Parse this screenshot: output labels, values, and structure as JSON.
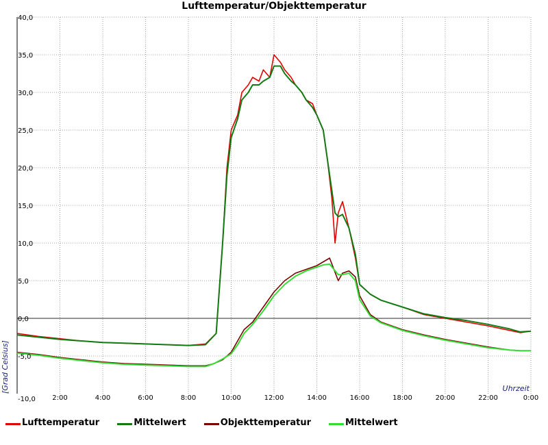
{
  "chart_data": {
    "type": "line",
    "title": "Lufttemperatur/Objekttemperatur",
    "xlabel": "Uhrzeit",
    "ylabel": "[Grad Celsius]",
    "xlim": [
      0,
      24
    ],
    "ylim": [
      -10,
      40
    ],
    "y_ticks": [
      "-10,0",
      "-5,0",
      "0,0",
      "5,0",
      "10,0",
      "15,0",
      "20,0",
      "25,0",
      "30,0",
      "35,0",
      "40,0"
    ],
    "x_ticks": [
      "2:00",
      "4:00",
      "6:00",
      "8:00",
      "10:00",
      "12:00",
      "14:00",
      "16:00",
      "18:00",
      "20:00",
      "22:00",
      "0:00"
    ],
    "grid": true,
    "zero_line": true,
    "legend_position": "bottom",
    "series": [
      {
        "name": "Lufttemperatur",
        "color": "#e00000",
        "x": [
          0,
          1,
          2,
          3,
          4,
          5,
          6,
          7,
          8,
          8.8,
          9.3,
          9.6,
          9.8,
          10,
          10.3,
          10.5,
          10.8,
          11,
          11.3,
          11.5,
          11.8,
          12,
          12.3,
          12.5,
          12.8,
          13,
          13.3,
          13.5,
          13.8,
          14,
          14.3,
          14.5,
          14.7,
          14.85,
          15,
          15.2,
          15.5,
          15.8,
          16,
          16.5,
          17,
          18,
          19,
          20,
          21,
          22,
          23,
          23.5,
          24
        ],
        "y": [
          -2,
          -2.4,
          -2.7,
          -3,
          -3.2,
          -3.3,
          -3.4,
          -3.5,
          -3.6,
          -3.4,
          -2,
          10,
          20,
          25,
          27,
          30,
          31,
          32,
          31.5,
          33,
          32,
          35,
          34,
          33,
          32,
          31,
          30,
          29,
          28.5,
          27,
          25,
          21,
          16,
          10,
          14,
          15.5,
          12,
          8,
          4.5,
          3.2,
          2.4,
          1.5,
          0.5,
          0,
          -0.5,
          -1,
          -1.6,
          -1.9,
          -1.7
        ]
      },
      {
        "name": "Mittelwert",
        "color": "#117a11",
        "x": [
          0,
          1,
          2,
          3,
          4,
          5,
          6,
          7,
          8,
          8.8,
          9.3,
          9.6,
          9.8,
          10,
          10.3,
          10.5,
          10.8,
          11,
          11.3,
          11.5,
          11.8,
          12,
          12.3,
          12.5,
          12.8,
          13,
          13.3,
          13.5,
          13.8,
          14,
          14.3,
          14.5,
          14.7,
          14.85,
          15,
          15.2,
          15.5,
          15.8,
          16,
          16.5,
          17,
          18,
          19,
          20,
          21,
          22,
          23,
          23.5,
          24
        ],
        "y": [
          -2.2,
          -2.5,
          -2.8,
          -3,
          -3.2,
          -3.3,
          -3.4,
          -3.5,
          -3.6,
          -3.5,
          -2,
          10,
          19,
          24,
          26.5,
          29,
          30,
          31,
          31,
          31.5,
          32,
          33.5,
          33.5,
          32.5,
          31.5,
          31,
          30,
          29,
          28,
          27,
          25,
          21,
          17,
          14,
          13.5,
          13.8,
          12,
          8.5,
          4.5,
          3.2,
          2.4,
          1.5,
          0.6,
          0.1,
          -0.3,
          -0.8,
          -1.4,
          -1.8,
          -1.7
        ]
      },
      {
        "name": "Objekttemperatur",
        "color": "#7a0000",
        "x": [
          0,
          1,
          2,
          3,
          4,
          5,
          6,
          7,
          8,
          8.8,
          9.2,
          9.6,
          10,
          10.3,
          10.6,
          11,
          11.5,
          12,
          12.5,
          13,
          13.5,
          14,
          14.3,
          14.6,
          14.8,
          15,
          15.2,
          15.5,
          15.8,
          16,
          16.5,
          17,
          18,
          19,
          20,
          21,
          22,
          23,
          23.5,
          24
        ],
        "y": [
          -4.5,
          -4.8,
          -5.2,
          -5.5,
          -5.8,
          -6,
          -6.1,
          -6.2,
          -6.3,
          -6.3,
          -6,
          -5.5,
          -4.5,
          -3,
          -1.5,
          -0.5,
          1.5,
          3.5,
          5,
          6,
          6.5,
          7,
          7.5,
          8,
          6.5,
          5,
          6,
          6.3,
          5.5,
          3,
          0.5,
          -0.5,
          -1.5,
          -2.2,
          -2.8,
          -3.3,
          -3.8,
          -4.2,
          -4.3,
          -4.3
        ]
      },
      {
        "name": "Mittelwert",
        "color": "#33dd33",
        "x": [
          0,
          1,
          2,
          3,
          4,
          5,
          6,
          7,
          8,
          8.8,
          9.2,
          9.6,
          10,
          10.3,
          10.6,
          11,
          11.5,
          12,
          12.5,
          13,
          13.5,
          14,
          14.3,
          14.6,
          14.8,
          15,
          15.2,
          15.5,
          15.8,
          16,
          16.5,
          17,
          18,
          19,
          20,
          21,
          22,
          23,
          23.5,
          24
        ],
        "y": [
          -4.6,
          -4.9,
          -5.3,
          -5.6,
          -5.9,
          -6.1,
          -6.2,
          -6.3,
          -6.4,
          -6.4,
          -6,
          -5.4,
          -4.7,
          -3.5,
          -2,
          -0.8,
          1,
          3,
          4.5,
          5.6,
          6.3,
          6.8,
          7.1,
          7.2,
          6.5,
          5.8,
          5.8,
          6,
          5,
          2.5,
          0.3,
          -0.6,
          -1.6,
          -2.3,
          -2.9,
          -3.4,
          -3.9,
          -4.2,
          -4.3,
          -4.3
        ]
      }
    ]
  }
}
